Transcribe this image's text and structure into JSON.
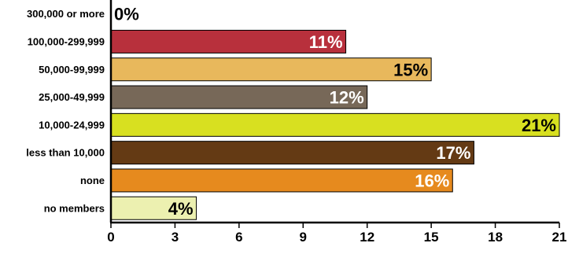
{
  "chart_data": {
    "type": "bar",
    "orientation": "horizontal",
    "title": "",
    "xlabel": "",
    "ylabel": "",
    "xlim": [
      0,
      21
    ],
    "x_ticks": [
      0,
      3,
      6,
      9,
      12,
      15,
      18,
      21
    ],
    "grid": false,
    "categories": [
      "300,000 or more",
      "100,000-299,999",
      "50,000-99,999",
      "25,000-49,999",
      "10,000-24,999",
      "less than 10,000",
      "none",
      "no members"
    ],
    "values": [
      0,
      11,
      15,
      12,
      21,
      17,
      16,
      4
    ],
    "data_labels": [
      "0%",
      "11%",
      "15%",
      "12%",
      "21%",
      "17%",
      "16%",
      "4%"
    ],
    "bar_colors": [
      "#ffffff",
      "#b8303c",
      "#e8b85c",
      "#776858",
      "#d8e020",
      "#643a14",
      "#e68a1e",
      "#ecf0b0"
    ],
    "label_colors": [
      "#000000",
      "#ffffff",
      "#000000",
      "#ffffff",
      "#000000",
      "#ffffff",
      "#ffffff",
      "#000000"
    ]
  }
}
